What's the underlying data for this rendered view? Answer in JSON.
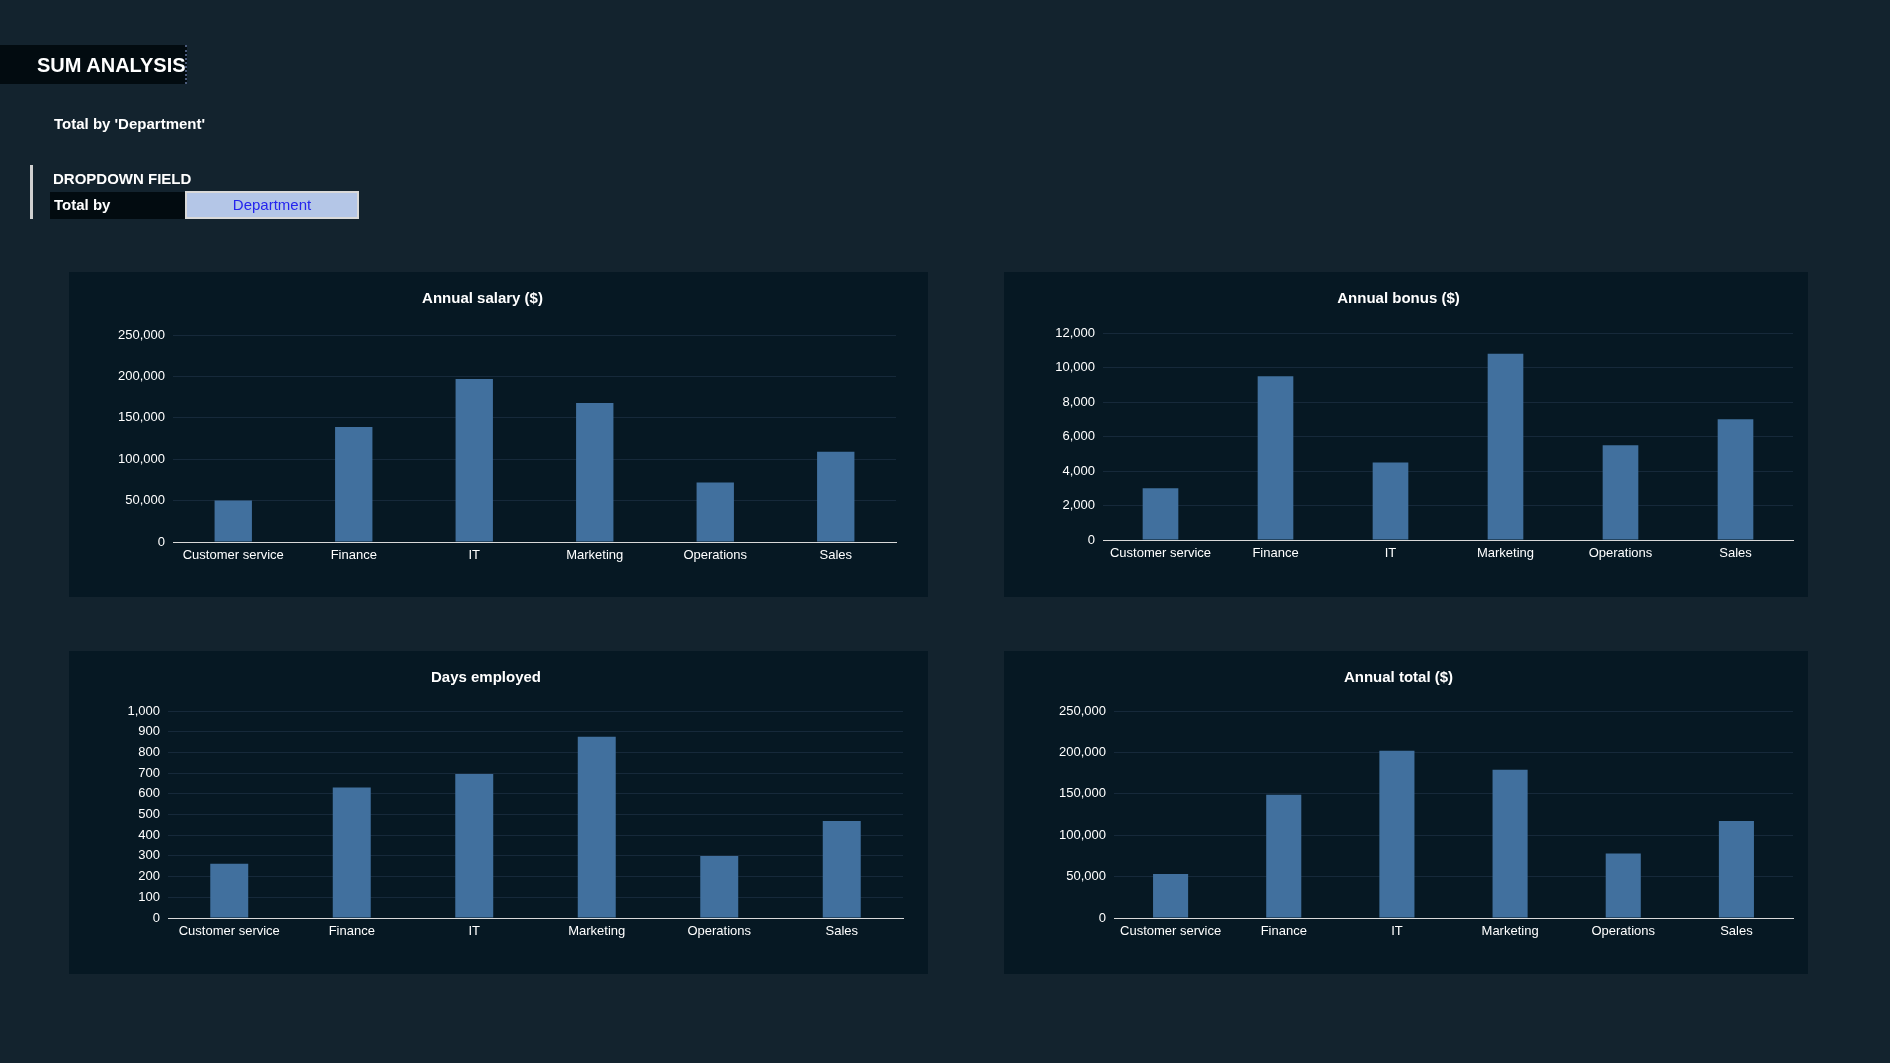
{
  "chart_data": [
    {
      "type": "other",
      "title": "SUM ANALYSIS",
      "subtitle": "Total by 'Department'",
      "annotations": [
        "DROPDOWN FIELD",
        "Total by",
        "Department"
      ]
    },
    {
      "type": "bar",
      "title": "Annual salary ($)",
      "categories": [
        "Customer service",
        "Finance",
        "IT",
        "Marketing",
        "Operations",
        "Sales"
      ],
      "values": [
        50000,
        139000,
        197000,
        168000,
        72000,
        109000
      ],
      "color": "#41709e",
      "ylim": [
        0,
        250000
      ],
      "yticks": [
        0,
        {
          "value": 50000,
          "label": "50,000"
        },
        {
          "value": 100000,
          "label": "100,000"
        },
        {
          "value": 150000,
          "label": "150,000"
        },
        {
          "value": 200000,
          "label": "200,000"
        },
        {
          "value": 250000,
          "label": "250,000"
        }
      ],
      "grid": "y"
    },
    {
      "type": "bar",
      "title": "Annual bonus ($)",
      "categories": [
        "Customer service",
        "Finance",
        "IT",
        "Marketing",
        "Operations",
        "Sales"
      ],
      "values": [
        3000,
        9500,
        4500,
        10800,
        5500,
        7000
      ],
      "color": "#41709e",
      "ylim": [
        0,
        12000
      ],
      "yticks": [
        0,
        {
          "value": 2000,
          "label": "2,000"
        },
        {
          "value": 4000,
          "label": "4,000"
        },
        {
          "value": 6000,
          "label": "6,000"
        },
        {
          "value": 8000,
          "label": "8,000"
        },
        {
          "value": 10000,
          "label": "10,000"
        },
        {
          "value": 12000,
          "label": "12,000"
        }
      ],
      "grid": "y"
    },
    {
      "type": "bar",
      "title": "Days employed",
      "categories": [
        "Customer service",
        "Finance",
        "IT",
        "Marketing",
        "Operations",
        "Sales"
      ],
      "values": [
        262,
        630,
        696,
        876,
        300,
        468
      ],
      "color": "#41709e",
      "ylim": [
        0,
        1000
      ],
      "yticks": [
        0,
        100,
        200,
        300,
        400,
        500,
        600,
        700,
        800,
        900,
        {
          "value": 1000,
          "label": "1,000"
        }
      ],
      "grid": "y"
    },
    {
      "type": "bar",
      "title": "Annual total ($)",
      "categories": [
        "Customer service",
        "Finance",
        "IT",
        "Marketing",
        "Operations",
        "Sales"
      ],
      "values": [
        53000,
        149000,
        202000,
        179000,
        78000,
        117000
      ],
      "color": "#41709e",
      "ylim": [
        0,
        250000
      ],
      "yticks": [
        0,
        {
          "value": 50000,
          "label": "50,000"
        },
        {
          "value": 100000,
          "label": "100,000"
        },
        {
          "value": 150000,
          "label": "150,000"
        },
        {
          "value": 200000,
          "label": "200,000"
        },
        {
          "value": 250000,
          "label": "250,000"
        }
      ],
      "grid": "y"
    }
  ]
}
